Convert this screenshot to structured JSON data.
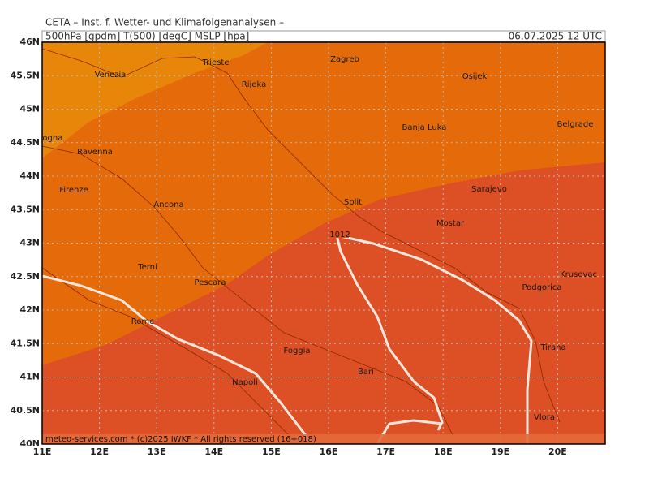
{
  "header": {
    "title": "CETA – Inst. f. Wetter- und Klimafolgenanalysen –",
    "params": "500hPa [gpdm] T(500) [degC] MSLP [hpa]",
    "date": "06.07.2025 12 UTC"
  },
  "axes": {
    "lat_labels": [
      "46N",
      "45.5N",
      "45N",
      "44.5N",
      "44N",
      "43.5N",
      "43N",
      "42.5N",
      "42N",
      "41.5N",
      "41N",
      "40.5N",
      "40N"
    ],
    "lon_labels": [
      "11E",
      "12E",
      "13E",
      "14E",
      "15E",
      "16E",
      "17E",
      "18E",
      "19E",
      "20E"
    ]
  },
  "cities": [
    "Trieste",
    "Zagreb",
    "Venezia",
    "Osijek",
    "Rijeka",
    "Banja Luka",
    "Belgrade",
    "Bologna",
    "Ravenna",
    "Firenze",
    "Ancona",
    "Split",
    "Sarajevo",
    "Mostar",
    "Terni",
    "Pescara",
    "Krusevac",
    "Podgorica",
    "Rome",
    "Foggia",
    "Tirana",
    "Bari",
    "Napoli",
    "Vlora"
  ],
  "isobar_label": "1012",
  "footer": "meteo-services.com * (c)2025 IWKF * All rights reserved (16+018)"
}
